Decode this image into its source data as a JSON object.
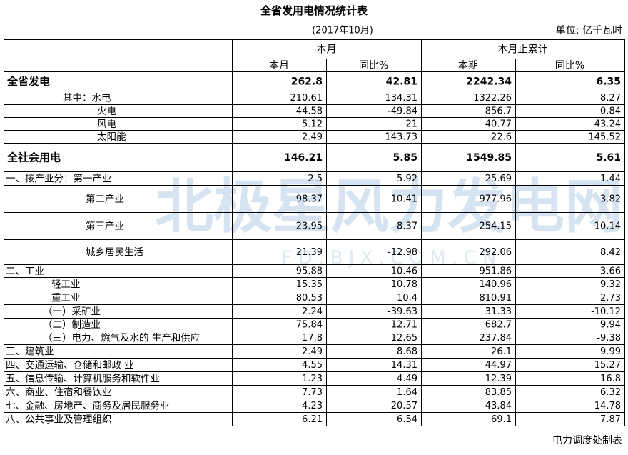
{
  "header": {
    "title": "全省发用电情况统计表",
    "subtitle": "(2017年10月)",
    "unit": "单位: 亿千瓦时"
  },
  "table": {
    "group_headers": [
      "本月",
      "本月止累计"
    ],
    "sub_headers": [
      "本月",
      "同比%",
      "本期",
      "同比%"
    ],
    "rows": [
      [
        "全省发电",
        262.8,
        42.81,
        2242.34,
        6.35
      ],
      [
        "其中：水电",
        210.61,
        134.31,
        1322.26,
        8.27
      ],
      [
        "火电",
        44.58,
        -49.84,
        856.7,
        0.84
      ],
      [
        "风电",
        5.12,
        21,
        40.77,
        43.24
      ],
      [
        "太阳能",
        2.49,
        143.73,
        22.6,
        145.52
      ],
      [
        "全社会用电",
        146.21,
        5.85,
        1549.85,
        5.61
      ],
      [
        "一、按产业分：第一产业",
        2.5,
        5.92,
        25.69,
        1.44
      ],
      [
        "第二产业",
        98.37,
        10.41,
        977.96,
        3.82
      ],
      [
        "第三产业",
        23.95,
        8.37,
        254.15,
        10.14
      ],
      [
        "城乡居民生活",
        21.39,
        -12.98,
        292.06,
        8.42
      ],
      [
        "二、工业",
        95.88,
        10.46,
        951.86,
        3.66
      ],
      [
        "轻工业",
        15.35,
        10.78,
        140.96,
        9.32
      ],
      [
        "重工业",
        80.53,
        10.4,
        810.91,
        2.73
      ],
      [
        "（一）采矿业",
        2.24,
        -39.63,
        31.33,
        -10.12
      ],
      [
        "（二）制造业",
        75.84,
        12.71,
        682.7,
        9.94
      ],
      [
        "（三）电力、燃气及水的 生产和供应",
        17.8,
        12.65,
        237.84,
        -9.38
      ],
      [
        "三、建筑业",
        2.49,
        8.68,
        26.1,
        9.99
      ],
      [
        "四、交通运输、仓储和邮政 业",
        4.55,
        14.31,
        44.97,
        15.27
      ],
      [
        "五、信息传输、计算机服务和软件业",
        1.23,
        4.49,
        12.39,
        16.8
      ],
      [
        "六、商业、住宿和餐饮业",
        7.73,
        1.64,
        83.85,
        6.32
      ],
      [
        "七、金融、房地产、商务及居民服务业",
        4.23,
        20.57,
        43.84,
        14.78
      ],
      [
        "八、公共事业及管理组织",
        6.21,
        6.54,
        69.1,
        7.87
      ]
    ]
  },
  "watermark": {
    "main": "北极星风力发电网",
    "sub": "F D . B J X . C O M . C N"
  },
  "footer": {
    "note": "电力调度处制表"
  }
}
